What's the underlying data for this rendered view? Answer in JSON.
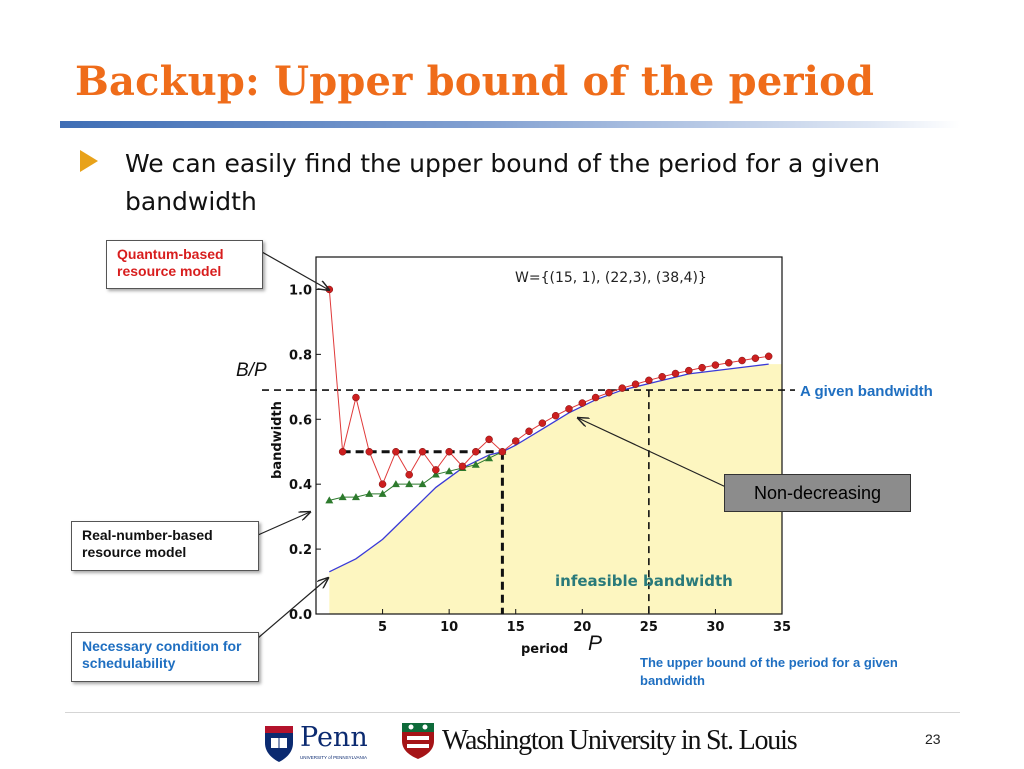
{
  "slide": {
    "title": "Backup: Upper bound of the period",
    "bullet": "We can easily find the upper bound of the period for a given bandwidth",
    "page_number": "23"
  },
  "callouts": {
    "quantum": "Quantum-based resource model",
    "real": "Real-number-based resource model",
    "necessary": "Necessary condition for schedulability",
    "given_bandwidth": "A given bandwidth",
    "non_decreasing": "Non-decreasing",
    "infeasible": "infeasible bandwidth",
    "upper_bound": "The upper bound of the period for a given bandwidth",
    "bp_label": "B/P",
    "p_label": "P"
  },
  "logos": {
    "penn": "Penn",
    "penn_sub": "UNIVERSITY of PENNSYLVANIA",
    "wustl": "Washington University in St. Louis"
  },
  "colors": {
    "title": "#ef6c1a",
    "quantum_series": "#cc1f1f",
    "real_series": "#2d7a2d",
    "necessary_series": "#3a3ad8",
    "infeasible_fill": "#fdf6c0",
    "callout_blue": "#1f6fc1"
  },
  "chart_data": {
    "type": "line",
    "annotation": "W={(15, 1), (22,3), (38,4)}",
    "xlabel": "period",
    "ylabel": "bandwidth",
    "xlim": [
      0,
      35
    ],
    "ylim": [
      0.0,
      1.1
    ],
    "xticks": [
      5,
      10,
      15,
      20,
      25,
      30,
      35
    ],
    "yticks": [
      0.0,
      0.2,
      0.4,
      0.6,
      0.8,
      1.0
    ],
    "given_bandwidth": 0.69,
    "given_bandwidth_p": 14,
    "upper_bound_period": 25,
    "series": [
      {
        "name": "Quantum-based",
        "x": [
          1,
          2,
          3,
          4,
          5,
          6,
          7,
          8,
          9,
          10,
          11,
          12,
          13,
          14,
          15,
          16,
          17,
          18,
          19,
          20,
          21,
          22,
          23,
          24,
          25,
          26,
          27,
          28,
          29,
          30,
          31,
          32,
          33,
          34
        ],
        "values": [
          1.0,
          0.5,
          0.667,
          0.5,
          0.4,
          0.5,
          0.429,
          0.5,
          0.444,
          0.5,
          0.455,
          0.5,
          0.538,
          0.5,
          0.533,
          0.563,
          0.588,
          0.611,
          0.632,
          0.65,
          0.667,
          0.682,
          0.696,
          0.708,
          0.72,
          0.731,
          0.741,
          0.75,
          0.759,
          0.767,
          0.774,
          0.781,
          0.788,
          0.794
        ]
      },
      {
        "name": "Real-number-based",
        "x": [
          1,
          2,
          3,
          4,
          5,
          6,
          7,
          8,
          9,
          10,
          11,
          12,
          13,
          14
        ],
        "values": [
          0.35,
          0.36,
          0.36,
          0.37,
          0.37,
          0.4,
          0.4,
          0.4,
          0.43,
          0.44,
          0.45,
          0.46,
          0.48,
          0.5
        ]
      },
      {
        "name": "Necessary condition",
        "x": [
          1,
          2,
          3,
          4,
          5,
          6,
          7,
          8,
          9,
          10,
          11,
          12,
          13,
          14,
          15,
          16,
          17,
          18,
          19,
          20,
          21,
          22,
          23,
          24,
          25,
          26,
          27,
          28,
          29,
          30,
          31,
          32,
          33,
          34
        ],
        "values": [
          0.13,
          0.15,
          0.17,
          0.2,
          0.23,
          0.27,
          0.31,
          0.35,
          0.39,
          0.42,
          0.45,
          0.47,
          0.49,
          0.5,
          0.52,
          0.545,
          0.57,
          0.595,
          0.62,
          0.64,
          0.66,
          0.675,
          0.69,
          0.7,
          0.71,
          0.72,
          0.73,
          0.74,
          0.745,
          0.75,
          0.755,
          0.76,
          0.765,
          0.77
        ]
      }
    ]
  }
}
